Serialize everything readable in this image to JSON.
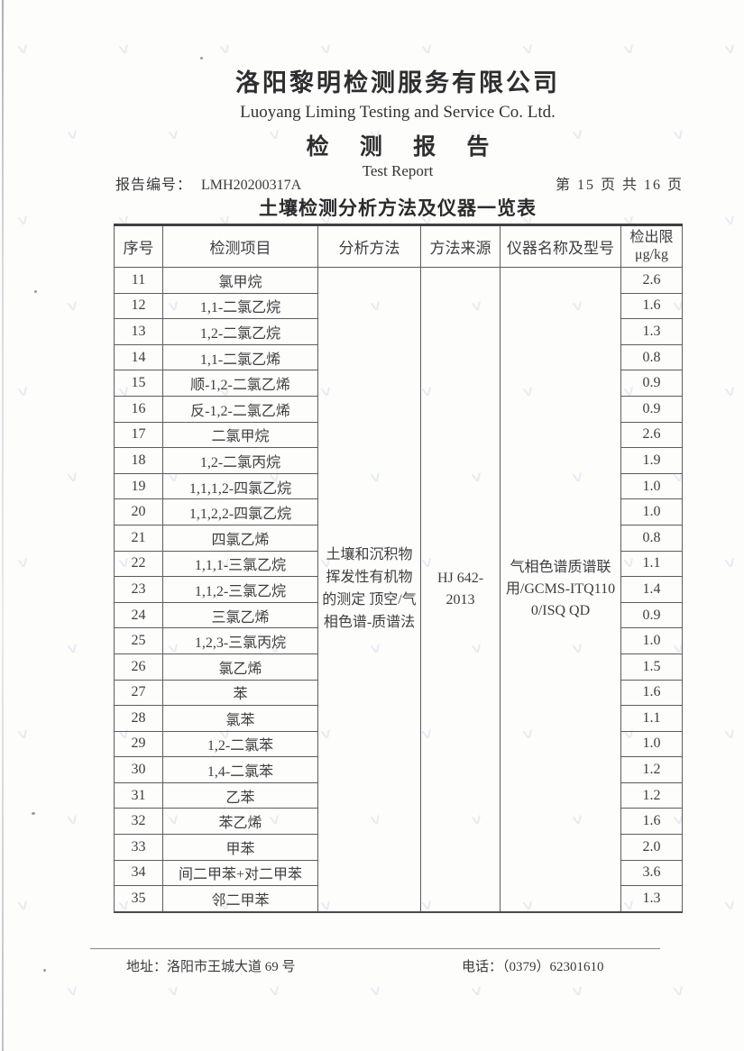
{
  "header": {
    "company_cn": "洛阳黎明检测服务有限公司",
    "company_en": "Luoyang Liming Testing and Service Co. Ltd.",
    "report_title_cn": "检 测 报 告",
    "report_title_en": "Test Report",
    "report_no_label": "报告编号：",
    "report_no_value": "LMH20200317A",
    "page_indicator": "第 15 页 共 16 页"
  },
  "table": {
    "title": "土壤检测分析方法及仪器一览表",
    "headers": {
      "no": "序号",
      "item": "检测项目",
      "method": "分析方法",
      "source": "方法来源",
      "instrument": "仪器名称及型号",
      "limit_line1": "检出限",
      "limit_line2": "μg/kg"
    },
    "merged": {
      "analysis_method": "土壤和沉积物 挥发性有机物的测定 顶空/气相色谱-质谱法",
      "method_source": "HJ 642-2013",
      "instrument": "气相色谱质谱联用/GCMS-ITQ1100/ISQ QD"
    },
    "rows": [
      {
        "no": "11",
        "item": "氯甲烷",
        "limit": "2.6"
      },
      {
        "no": "12",
        "item": "1,1-二氯乙烷",
        "limit": "1.6"
      },
      {
        "no": "13",
        "item": "1,2-二氯乙烷",
        "limit": "1.3"
      },
      {
        "no": "14",
        "item": "1,1-二氯乙烯",
        "limit": "0.8"
      },
      {
        "no": "15",
        "item": "顺-1,2-二氯乙烯",
        "limit": "0.9"
      },
      {
        "no": "16",
        "item": "反-1,2-二氯乙烯",
        "limit": "0.9"
      },
      {
        "no": "17",
        "item": "二氯甲烷",
        "limit": "2.6"
      },
      {
        "no": "18",
        "item": "1,2-二氯丙烷",
        "limit": "1.9"
      },
      {
        "no": "19",
        "item": "1,1,1,2-四氯乙烷",
        "limit": "1.0"
      },
      {
        "no": "20",
        "item": "1,1,2,2-四氯乙烷",
        "limit": "1.0"
      },
      {
        "no": "21",
        "item": "四氯乙烯",
        "limit": "0.8"
      },
      {
        "no": "22",
        "item": "1,1,1-三氯乙烷",
        "limit": "1.1"
      },
      {
        "no": "23",
        "item": "1,1,2-三氯乙烷",
        "limit": "1.4"
      },
      {
        "no": "24",
        "item": "三氯乙烯",
        "limit": "0.9"
      },
      {
        "no": "25",
        "item": "1,2,3-三氯丙烷",
        "limit": "1.0"
      },
      {
        "no": "26",
        "item": "氯乙烯",
        "limit": "1.5"
      },
      {
        "no": "27",
        "item": "苯",
        "limit": "1.6"
      },
      {
        "no": "28",
        "item": "氯苯",
        "limit": "1.1"
      },
      {
        "no": "29",
        "item": "1,2-二氯苯",
        "limit": "1.0"
      },
      {
        "no": "30",
        "item": "1,4-二氯苯",
        "limit": "1.2"
      },
      {
        "no": "31",
        "item": "乙苯",
        "limit": "1.2"
      },
      {
        "no": "32",
        "item": "苯乙烯",
        "limit": "1.6"
      },
      {
        "no": "33",
        "item": "甲苯",
        "limit": "2.0"
      },
      {
        "no": "34",
        "item": "间二甲苯+对二甲苯",
        "limit": "3.6"
      },
      {
        "no": "35",
        "item": "邻二甲苯",
        "limit": "1.3"
      }
    ]
  },
  "footer": {
    "address_label": "地址：",
    "address_value": "洛阳市王城大道 69 号",
    "phone_label": "电话：",
    "phone_value": "（0379）62301610"
  }
}
